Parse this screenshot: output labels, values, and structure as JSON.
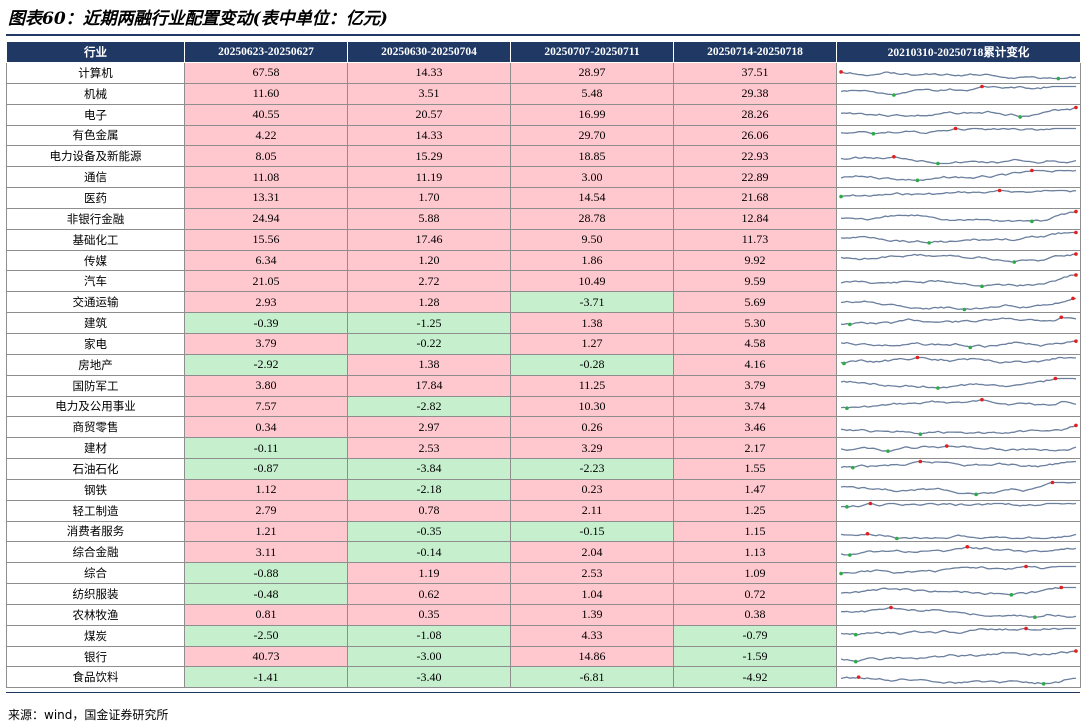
{
  "title": "图表60：近期两融行业配置变动(表中单位：亿元)",
  "source": "来源：wind，国金证券研究所",
  "headers": [
    "行业",
    "20250623-20250627",
    "20250630-20250704",
    "20250707-20250711",
    "20250714-20250718",
    "20210310-20250718累计变化"
  ],
  "colors": {
    "positive": "#ffc7ce",
    "negative": "#c6efce",
    "header": "#1f3864",
    "line": "#6b7f9e",
    "max_dot": "#e02020",
    "min_dot": "#2eaa4a"
  },
  "rows": [
    {
      "name": "计算机",
      "v": [
        "67.58",
        "14.33",
        "28.97",
        "37.51"
      ]
    },
    {
      "name": "机械",
      "v": [
        "11.60",
        "3.51",
        "5.48",
        "29.38"
      ]
    },
    {
      "name": "电子",
      "v": [
        "40.55",
        "20.57",
        "16.99",
        "28.26"
      ]
    },
    {
      "name": "有色金属",
      "v": [
        "4.22",
        "14.33",
        "29.70",
        "26.06"
      ]
    },
    {
      "name": "电力设备及新能源",
      "v": [
        "8.05",
        "15.29",
        "18.85",
        "22.93"
      ]
    },
    {
      "name": "通信",
      "v": [
        "11.08",
        "11.19",
        "3.00",
        "22.89"
      ]
    },
    {
      "name": "医药",
      "v": [
        "13.31",
        "1.70",
        "14.54",
        "21.68"
      ]
    },
    {
      "name": "非银行金融",
      "v": [
        "24.94",
        "5.88",
        "28.78",
        "12.84"
      ]
    },
    {
      "name": "基础化工",
      "v": [
        "15.56",
        "17.46",
        "9.50",
        "11.73"
      ]
    },
    {
      "name": "传媒",
      "v": [
        "6.34",
        "1.20",
        "1.86",
        "9.92"
      ]
    },
    {
      "name": "汽车",
      "v": [
        "21.05",
        "2.72",
        "10.49",
        "9.59"
      ]
    },
    {
      "name": "交通运输",
      "v": [
        "2.93",
        "1.28",
        "-3.71",
        "5.69"
      ]
    },
    {
      "name": "建筑",
      "v": [
        "-0.39",
        "-1.25",
        "1.38",
        "5.30"
      ]
    },
    {
      "name": "家电",
      "v": [
        "3.79",
        "-0.22",
        "1.27",
        "4.58"
      ]
    },
    {
      "name": "房地产",
      "v": [
        "-2.92",
        "1.38",
        "-0.28",
        "4.16"
      ]
    },
    {
      "name": "国防军工",
      "v": [
        "3.80",
        "17.84",
        "11.25",
        "3.79"
      ]
    },
    {
      "name": "电力及公用事业",
      "v": [
        "7.57",
        "-2.82",
        "10.30",
        "3.74"
      ]
    },
    {
      "name": "商贸零售",
      "v": [
        "0.34",
        "2.97",
        "0.26",
        "3.46"
      ]
    },
    {
      "name": "建材",
      "v": [
        "-0.11",
        "2.53",
        "3.29",
        "2.17"
      ]
    },
    {
      "name": "石油石化",
      "v": [
        "-0.87",
        "-3.84",
        "-2.23",
        "1.55"
      ]
    },
    {
      "name": "钢铁",
      "v": [
        "1.12",
        "-2.18",
        "0.23",
        "1.47"
      ]
    },
    {
      "name": "轻工制造",
      "v": [
        "2.79",
        "0.78",
        "2.11",
        "1.25"
      ]
    },
    {
      "name": "消费者服务",
      "v": [
        "1.21",
        "-0.35",
        "-0.15",
        "1.15"
      ]
    },
    {
      "name": "综合金融",
      "v": [
        "3.11",
        "-0.14",
        "2.04",
        "1.13"
      ]
    },
    {
      "name": "综合",
      "v": [
        "-0.88",
        "1.19",
        "2.53",
        "1.09"
      ]
    },
    {
      "name": "纺织服装",
      "v": [
        "-0.48",
        "0.62",
        "1.04",
        "0.72"
      ]
    },
    {
      "name": "农林牧渔",
      "v": [
        "0.81",
        "0.35",
        "1.39",
        "0.38"
      ]
    },
    {
      "name": "煤炭",
      "v": [
        "-2.50",
        "-1.08",
        "4.33",
        "-0.79"
      ]
    },
    {
      "name": "银行",
      "v": [
        "40.73",
        "-3.00",
        "14.86",
        "-1.59"
      ]
    },
    {
      "name": "食品饮料",
      "v": [
        "-1.41",
        "-3.40",
        "-6.81",
        "-4.92"
      ]
    }
  ]
}
